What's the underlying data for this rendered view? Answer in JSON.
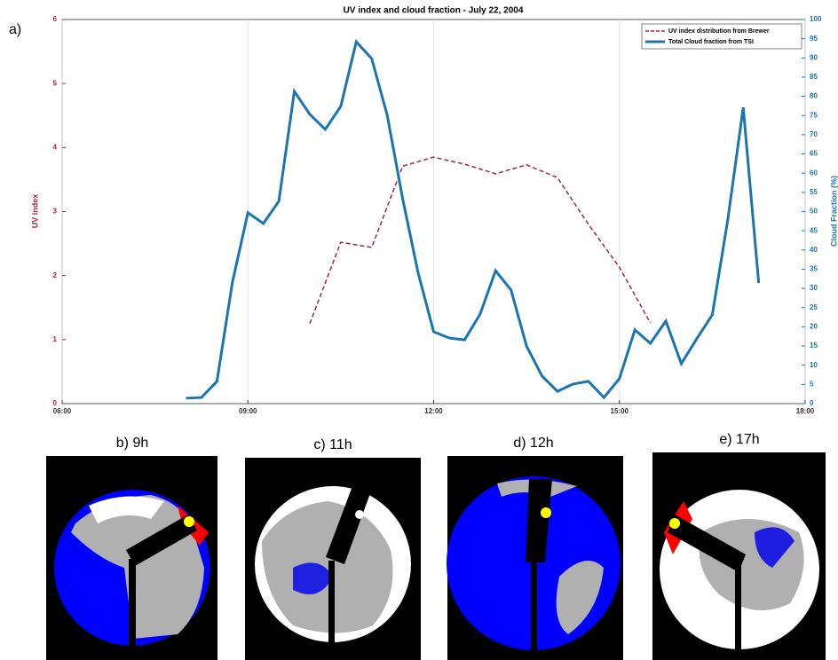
{
  "figure_label": "a)",
  "chart_data": {
    "type": "line",
    "title": "UV index and cloud fraction - July 22, 2004",
    "ylabel": "UV index",
    "y2label": "Cloud Fraction (%)",
    "xlim": [
      6,
      18
    ],
    "xticks": [
      {
        "value": 6,
        "label": "06:00"
      },
      {
        "value": 9,
        "label": "09:00"
      },
      {
        "value": 12,
        "label": "12:00"
      },
      {
        "value": 15,
        "label": "15:00"
      },
      {
        "value": 18,
        "label": "18:00"
      }
    ],
    "ylim": [
      0,
      6
    ],
    "yticks": [
      0,
      1,
      2,
      3,
      4,
      5,
      6
    ],
    "y2lim": [
      0,
      100
    ],
    "y2ticks": [
      0,
      5,
      10,
      15,
      20,
      25,
      30,
      35,
      40,
      45,
      50,
      55,
      60,
      65,
      70,
      75,
      80,
      85,
      90,
      95,
      100
    ],
    "grid": "x",
    "legend": "upper right",
    "series": [
      {
        "name": "UV index distribution from Brewer",
        "color": "#a0283c",
        "dashed": true,
        "x": [
          10,
          10.5,
          11,
          11.5,
          12,
          12.5,
          13,
          13.5,
          14,
          14.5,
          15,
          15.5
        ],
        "values": [
          1.25,
          2.52,
          2.44,
          3.71,
          3.85,
          3.74,
          3.59,
          3.73,
          3.53,
          2.8,
          2.13,
          1.26
        ]
      },
      {
        "name": "Total Cloud fraction from TSI",
        "color": "#1a75b0",
        "axis": "y2",
        "x": [
          8,
          8.25,
          8.5,
          8.75,
          9,
          9.25,
          9.5,
          9.75,
          10,
          10.25,
          10.5,
          10.75,
          11,
          11.25,
          11.5,
          11.75,
          12,
          12.25,
          12.5,
          12.75,
          13,
          13.25,
          13.5,
          13.75,
          14,
          14.25,
          14.5,
          14.75,
          15,
          15.25,
          15.5,
          15.75,
          16,
          16.25,
          16.5,
          16.75,
          17,
          17.25
        ],
        "values": [
          1.4,
          1.6,
          5.8,
          31.6,
          49.7,
          46.9,
          52.7,
          81.3,
          75.3,
          71.4,
          77.4,
          94.2,
          89.8,
          75.1,
          53.3,
          34,
          18.7,
          17.1,
          16.6,
          23.3,
          34.6,
          29.6,
          15,
          7.2,
          3.2,
          5.1,
          5.8,
          1.6,
          6.5,
          19.2,
          15.7,
          21.5,
          10.4,
          16.9,
          23.1,
          47.8,
          77.1,
          31.4
        ]
      }
    ]
  },
  "panels": [
    {
      "label": "b) 9h"
    },
    {
      "label": "c) 11h"
    },
    {
      "label": "d) 12h"
    },
    {
      "label": "e) 17h"
    }
  ]
}
